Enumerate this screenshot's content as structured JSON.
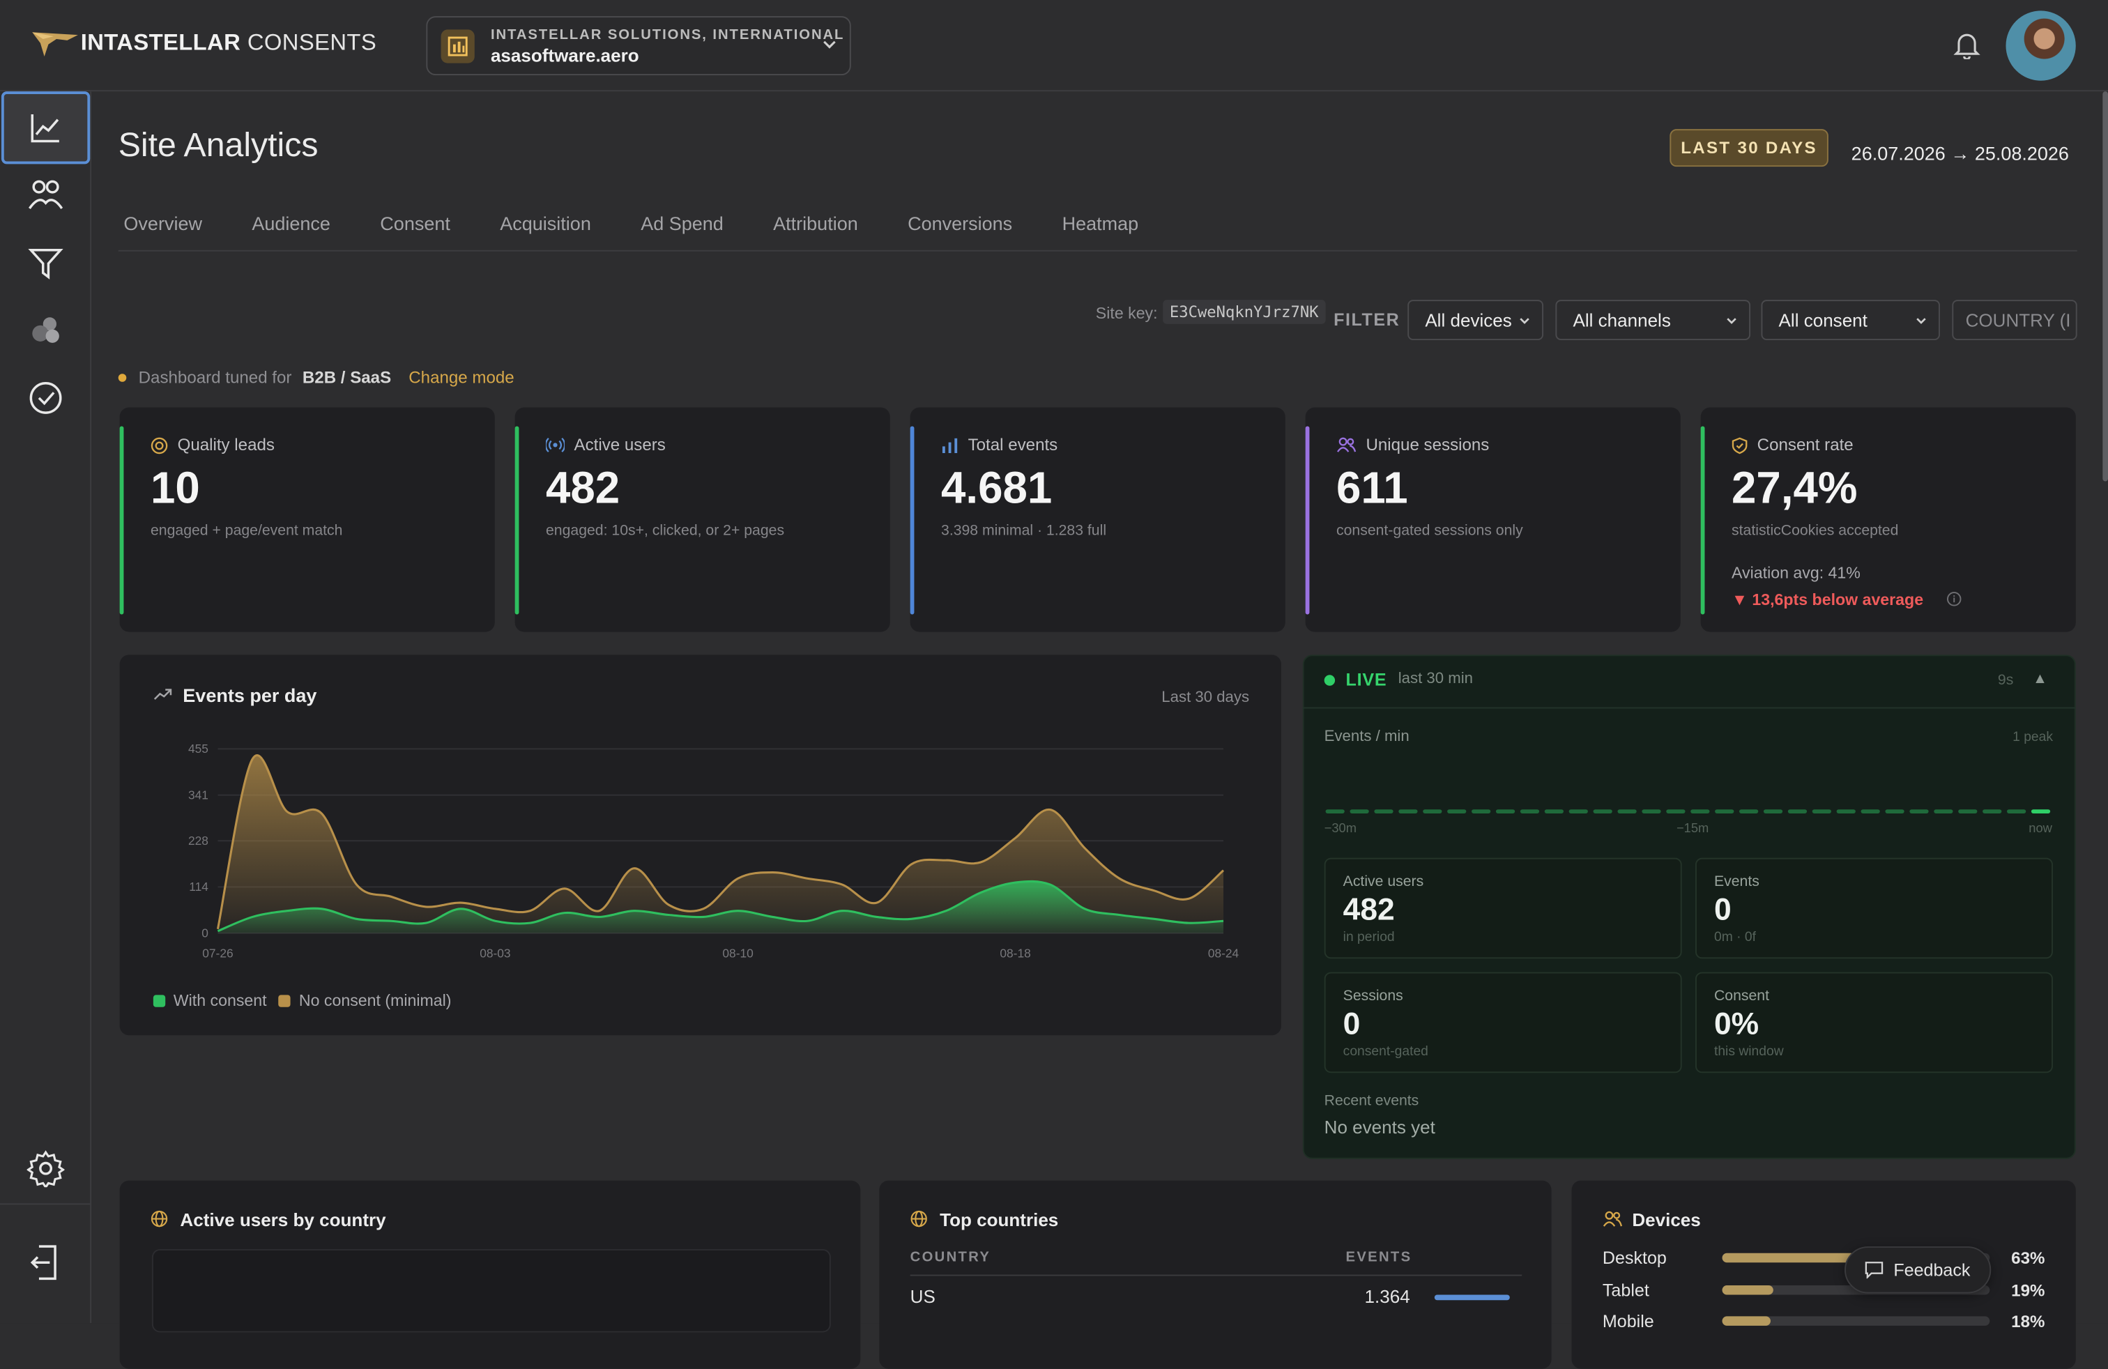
{
  "brand": {
    "name_bold": "INTASTELLAR",
    "name_light": "CONSENTS"
  },
  "site_switcher": {
    "org": "INTASTELLAR SOLUTIONS, INTERNATIONAL",
    "domain": "asasoftware.aero"
  },
  "sidebar": {
    "items": [
      "analytics-icon",
      "audience-icon",
      "filter-icon",
      "segments-icon",
      "check-icon"
    ],
    "bottom": [
      "settings-icon",
      "logout-icon"
    ]
  },
  "page": {
    "title": "Site Analytics",
    "range_badge": "LAST 30 DAYS",
    "range_dates": "26.07.2026 → 25.08.2026"
  },
  "tabs": [
    "Overview",
    "Audience",
    "Consent",
    "Acquisition",
    "Ad Spend",
    "Attribution",
    "Conversions",
    "Heatmap"
  ],
  "filters": {
    "site_key_label": "Site key:",
    "site_key": "E3CweNqknYJrz7NK",
    "filter_label": "FILTER",
    "devices": "All devices",
    "channels": "All channels",
    "consent": "All consent",
    "country_placeholder": "COUNTRY (I"
  },
  "mode": {
    "prefix": "Dashboard tuned for",
    "value": "B2B / SaaS",
    "link": "Change mode"
  },
  "kpis": [
    {
      "label": "Quality leads",
      "value": "10",
      "sub": "engaged + page/event match",
      "color": "#2fbf5f"
    },
    {
      "label": "Active users",
      "value": "482",
      "sub": "engaged: 10s+, clicked, or 2+ pages",
      "color": "#2fbf5f"
    },
    {
      "label": "Total events",
      "value": "4.681",
      "sub": "3.398 minimal · 1.283 full",
      "color": "#4f86d8"
    },
    {
      "label": "Unique sessions",
      "value": "611",
      "sub": "consent-gated sessions only",
      "color": "#9a72e0"
    },
    {
      "label": "Consent rate",
      "value": "27,4%",
      "sub": "statisticCookies accepted",
      "extra1": "Aviation avg: 41%",
      "extra2": "▼ 13,6pts below average",
      "color": "#2fbf5f"
    }
  ],
  "events_chart": {
    "title": "Events per day",
    "range": "Last 30 days"
  },
  "chart_data": {
    "type": "area",
    "x": [
      "07-26",
      "07-27",
      "07-28",
      "07-29",
      "07-30",
      "07-31",
      "08-01",
      "08-02",
      "08-03",
      "08-04",
      "08-05",
      "08-06",
      "08-07",
      "08-08",
      "08-09",
      "08-10",
      "08-11",
      "08-12",
      "08-13",
      "08-14",
      "08-15",
      "08-16",
      "08-17",
      "08-18",
      "08-19",
      "08-20",
      "08-21",
      "08-22",
      "08-23",
      "08-24"
    ],
    "x_ticks": [
      "07-26",
      "08-03",
      "08-10",
      "08-18",
      "08-24"
    ],
    "y_ticks": [
      0,
      114,
      228,
      341,
      455
    ],
    "ylim": [
      0,
      455
    ],
    "series": [
      {
        "name": "With consent",
        "color": "#2fbf5f",
        "values": [
          5,
          40,
          55,
          60,
          35,
          30,
          25,
          60,
          30,
          25,
          50,
          40,
          55,
          45,
          40,
          55,
          40,
          30,
          55,
          40,
          35,
          55,
          100,
          125,
          120,
          60,
          45,
          35,
          25,
          30
        ]
      },
      {
        "name": "No consent (minimal)",
        "color": "#b8904a",
        "values": [
          10,
          430,
          300,
          295,
          120,
          90,
          65,
          75,
          60,
          55,
          110,
          55,
          160,
          70,
          60,
          135,
          150,
          135,
          120,
          75,
          170,
          180,
          175,
          235,
          305,
          210,
          135,
          105,
          85,
          155
        ]
      }
    ]
  },
  "live": {
    "label": "LIVE",
    "window": "last 30 min",
    "seconds": "9s",
    "epm_label": "Events / min",
    "peak": "1 peak",
    "t_start": "−30m",
    "t_mid": "−15m",
    "t_end": "now",
    "boxes": [
      {
        "label": "Active users",
        "value": "482",
        "sub": "in period"
      },
      {
        "label": "Events",
        "value": "0",
        "sub": "0m · 0f"
      },
      {
        "label": "Sessions",
        "value": "0",
        "sub": "consent-gated"
      },
      {
        "label": "Consent",
        "value": "0%",
        "sub": "this window"
      }
    ],
    "recent_label": "Recent events",
    "recent_empty": "No events yet"
  },
  "bottom": {
    "map_title": "Active users by country",
    "top_title": "Top countries",
    "col_country": "COUNTRY",
    "col_events": "EVENTS",
    "rows": [
      {
        "country": "US",
        "events": "1.364",
        "share": 0.62
      }
    ],
    "devices_title": "Devices",
    "devices": [
      {
        "name": "Desktop",
        "pct": "63%",
        "share": 0.63
      },
      {
        "name": "Tablet",
        "pct": "19%",
        "share": 0.19
      },
      {
        "name": "Mobile",
        "pct": "18%",
        "share": 0.18
      }
    ],
    "feedback": "Feedback"
  }
}
